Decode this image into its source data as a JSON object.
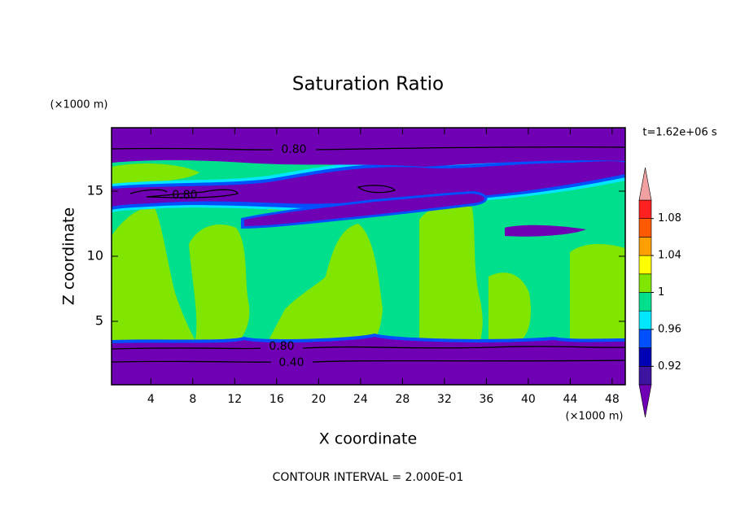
{
  "chart_data": {
    "type": "contour",
    "title": "Saturation Ratio",
    "subtitle": "t=1.62e+06 s",
    "x_label": "X coordinate",
    "y_label": "Z coordinate",
    "x_unit": "(×1000 m)",
    "y_unit": "(×1000 m)",
    "footer": "CONTOUR INTERVAL = 2.000E-01",
    "contour_labels": [
      "0.80",
      "0.80",
      "0.40",
      "0.80"
    ],
    "xlim": [
      0.25,
      49.25
    ],
    "ylim": [
      0.125,
      19.875
    ],
    "xticks": [
      4,
      8,
      12,
      16,
      20,
      24,
      28,
      32,
      36,
      40,
      44,
      48
    ],
    "yticks": [
      5,
      10,
      15
    ],
    "colorbar": {
      "levels": [
        0.9,
        0.92,
        0.94,
        0.96,
        0.98,
        1,
        1.02,
        1.04,
        1.06,
        1.08,
        1.1
      ],
      "ticks": [
        0.92,
        0.96,
        1,
        1.04,
        1.08
      ],
      "colors": [
        "#7000b4",
        "#3c14a0",
        "#0000b4",
        "#0050ff",
        "#00e6ff",
        "#00e08c",
        "#80e600",
        "#ffff00",
        "#ffa000",
        "#ff5a00",
        "#ff2020",
        "#f0a0a0"
      ]
    }
  }
}
